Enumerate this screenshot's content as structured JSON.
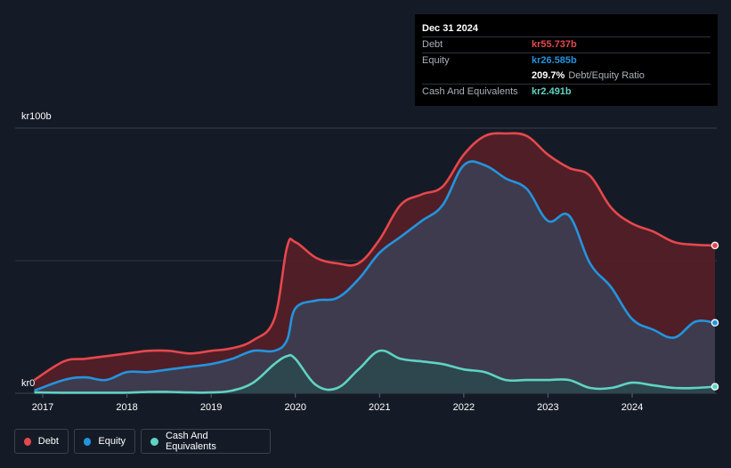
{
  "chart_data": {
    "type": "area",
    "y_unit_top_label": "kr100b",
    "y_unit_bottom_label": "kr0",
    "ylim": [
      0,
      100
    ],
    "xlim": [
      2016.9,
      2025.0
    ],
    "x_ticks": [
      2017,
      2018,
      2019,
      2020,
      2021,
      2022,
      2023,
      2024
    ],
    "x_tick_labels": [
      "2017",
      "2018",
      "2019",
      "2020",
      "2021",
      "2022",
      "2023",
      "2024"
    ],
    "series": [
      {
        "name": "Debt",
        "color": "#e5484d",
        "fill": "#5a1f27",
        "x": [
          2016.9,
          2017.25,
          2017.5,
          2017.75,
          2018.0,
          2018.25,
          2018.5,
          2018.75,
          2019.0,
          2019.25,
          2019.5,
          2019.75,
          2019.9,
          2020.0,
          2020.25,
          2020.5,
          2020.75,
          2021.0,
          2021.25,
          2021.5,
          2021.75,
          2022.0,
          2022.25,
          2022.5,
          2022.75,
          2023.0,
          2023.25,
          2023.5,
          2023.75,
          2024.0,
          2024.25,
          2024.5,
          2024.75,
          2025.0
        ],
        "values": [
          5,
          12,
          13,
          14,
          15,
          16,
          16,
          15,
          16,
          17,
          20,
          28,
          55,
          57,
          51,
          49,
          49,
          58,
          71,
          75,
          78,
          90,
          97,
          98,
          97,
          90,
          85,
          82,
          70,
          64,
          61,
          57,
          56,
          55.737
        ]
      },
      {
        "name": "Equity",
        "color": "#2394df",
        "fill": "#3a4259",
        "x": [
          2016.9,
          2017.25,
          2017.5,
          2017.75,
          2018.0,
          2018.25,
          2018.5,
          2018.75,
          2019.0,
          2019.25,
          2019.5,
          2019.75,
          2019.9,
          2020.0,
          2020.25,
          2020.5,
          2020.75,
          2021.0,
          2021.25,
          2021.5,
          2021.75,
          2022.0,
          2022.25,
          2022.5,
          2022.75,
          2023.0,
          2023.25,
          2023.5,
          2023.75,
          2024.0,
          2024.25,
          2024.5,
          2024.75,
          2025.0
        ],
        "values": [
          1,
          5,
          6,
          5,
          8,
          8,
          9,
          10,
          11,
          13,
          16,
          16,
          20,
          32,
          35,
          36,
          43,
          53,
          59,
          65,
          71,
          86,
          86,
          81,
          77,
          65,
          67,
          49,
          40,
          28,
          24,
          21,
          27,
          26.585
        ]
      },
      {
        "name": "Cash And Equivalents",
        "color": "#5fd3c4",
        "fill": "#2a4a4d",
        "x": [
          2016.9,
          2017.25,
          2017.5,
          2017.75,
          2018.0,
          2018.25,
          2018.5,
          2018.75,
          2019.0,
          2019.25,
          2019.5,
          2019.75,
          2019.9,
          2020.0,
          2020.25,
          2020.5,
          2020.75,
          2021.0,
          2021.25,
          2021.5,
          2021.75,
          2022.0,
          2022.25,
          2022.5,
          2022.75,
          2023.0,
          2023.25,
          2023.5,
          2023.75,
          2024.0,
          2024.25,
          2024.5,
          2024.75,
          2025.0
        ],
        "values": [
          0.3,
          0.2,
          0.2,
          0.2,
          0.2,
          0.5,
          0.5,
          0.3,
          0.3,
          1,
          4,
          11,
          14,
          13,
          3,
          2,
          9,
          16,
          13,
          12,
          11,
          9,
          8,
          5,
          5,
          5,
          5,
          2,
          2,
          4,
          3,
          2,
          2,
          2.491
        ]
      }
    ]
  },
  "tooltip": {
    "date": "Dec 31 2024",
    "rows": [
      {
        "label": "Debt",
        "value": "kr55.737b",
        "color": "#e5484d"
      },
      {
        "label": "Equity",
        "value": "kr26.585b",
        "color": "#2394df"
      },
      {
        "label": "",
        "value": "209.7%",
        "extra": "Debt/Equity Ratio",
        "color": "#ffffff"
      },
      {
        "label": "Cash And Equivalents",
        "value": "kr2.491b",
        "color": "#5fd3c4"
      }
    ]
  },
  "legend": [
    {
      "label": "Debt",
      "color": "#e5484d"
    },
    {
      "label": "Equity",
      "color": "#2394df"
    },
    {
      "label": "Cash And Equivalents",
      "color": "#5fd3c4"
    }
  ]
}
